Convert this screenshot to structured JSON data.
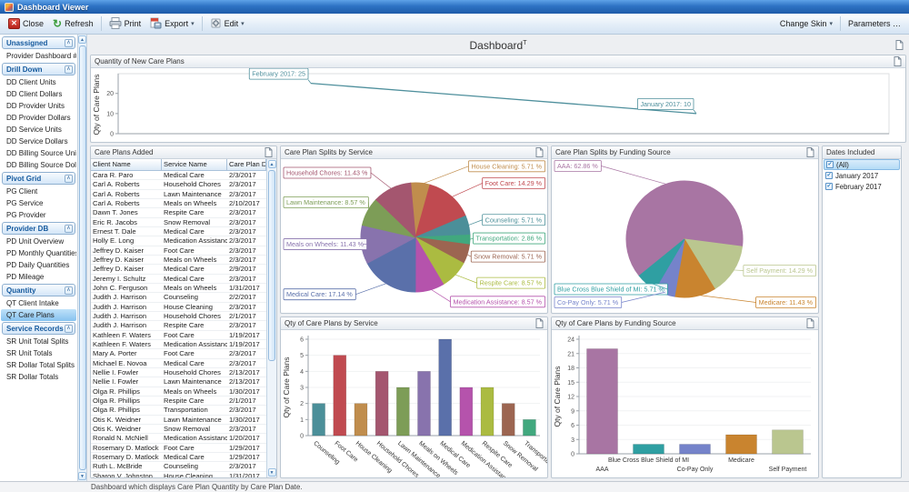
{
  "window": {
    "title": "Dashboard Viewer"
  },
  "toolbar": {
    "close": "Close",
    "refresh": "Refresh",
    "print": "Print",
    "export": "Export",
    "edit": "Edit",
    "change_skin": "Change Skin",
    "parameters": "Parameters …"
  },
  "sidebar": {
    "selected": "QT Care Plans",
    "groups": [
      {
        "label": "Unassigned",
        "items": [
          "Provider Dashboard #2"
        ]
      },
      {
        "label": "Drill Down",
        "items": [
          "DD Client Units",
          "DD Client Dollars",
          "DD Provider Units",
          "DD Provider Dollars",
          "DD Service Units",
          "DD Service Dollars",
          "DD Billing Source Units",
          "DD Billing Source Dollars"
        ]
      },
      {
        "label": "Pivot Grid",
        "items": [
          "PG Client",
          "PG Service",
          "PG Provider"
        ]
      },
      {
        "label": "Provider DB",
        "items": [
          "PD Unit Overview",
          "PD Monthly Quantities",
          "PD Daily Quantities",
          "PD Mileage"
        ]
      },
      {
        "label": "Quantity",
        "items": [
          "QT Client Intake",
          "QT Care Plans"
        ]
      },
      {
        "label": "Service Records",
        "items": [
          "SR Unit Total Splits",
          "SR Unit Totals",
          "SR Dollar Total Splits",
          "SR Dollar Totals"
        ]
      }
    ]
  },
  "dashboard": {
    "title": "Dashboard",
    "title_superscript": "T"
  },
  "table": {
    "title": "Care Plans Added",
    "columns": [
      "Client Name",
      "Service Name",
      "Care Plan Date"
    ],
    "rows": [
      [
        "Cara R. Paro",
        "Medical Care",
        "2/3/2017"
      ],
      [
        "Carl A. Roberts",
        "Household Chores",
        "2/3/2017"
      ],
      [
        "Carl A. Roberts",
        "Lawn Maintenance",
        "2/3/2017"
      ],
      [
        "Carl A. Roberts",
        "Meals on Wheels",
        "2/10/2017"
      ],
      [
        "Dawn T. Jones",
        "Respite Care",
        "2/3/2017"
      ],
      [
        "Eric R. Jacobs",
        "Snow Removal",
        "2/3/2017"
      ],
      [
        "Ernest T. Dale",
        "Medical Care",
        "2/3/2017"
      ],
      [
        "Holly E. Long",
        "Medication Assistance",
        "2/3/2017"
      ],
      [
        "Jeffrey D. Kaiser",
        "Foot Care",
        "2/3/2017"
      ],
      [
        "Jeffrey D. Kaiser",
        "Meals on Wheels",
        "2/3/2017"
      ],
      [
        "Jeffrey D. Kaiser",
        "Medical Care",
        "2/9/2017"
      ],
      [
        "Jeremy I. Schultz",
        "Medical Care",
        "2/3/2017"
      ],
      [
        "John C. Ferguson",
        "Meals on Wheels",
        "1/31/2017"
      ],
      [
        "Judith J. Harrison",
        "Counseling",
        "2/2/2017"
      ],
      [
        "Judith J. Harrison",
        "House Cleaning",
        "2/3/2017"
      ],
      [
        "Judith J. Harrison",
        "Household Chores",
        "2/1/2017"
      ],
      [
        "Judith J. Harrison",
        "Respite Care",
        "2/3/2017"
      ],
      [
        "Kathleen F. Waters",
        "Foot Care",
        "1/19/2017"
      ],
      [
        "Kathleen F. Waters",
        "Medication Assistance",
        "1/19/2017"
      ],
      [
        "Mary A. Porter",
        "Foot Care",
        "2/3/2017"
      ],
      [
        "Michael E. Novoa",
        "Medical Care",
        "2/3/2017"
      ],
      [
        "Nellie I. Fowler",
        "Household Chores",
        "2/13/2017"
      ],
      [
        "Nellie I. Fowler",
        "Lawn Maintenance",
        "2/13/2017"
      ],
      [
        "Olga R. Phillips",
        "Meals on Wheels",
        "1/30/2017"
      ],
      [
        "Olga R. Phillips",
        "Respite Care",
        "2/1/2017"
      ],
      [
        "Olga R. Phillips",
        "Transportation",
        "2/3/2017"
      ],
      [
        "Otis K. Weidner",
        "Lawn Maintenance",
        "1/30/2017"
      ],
      [
        "Otis K. Weidner",
        "Snow Removal",
        "2/3/2017"
      ],
      [
        "Ronald N. McNiell",
        "Medication Assistance",
        "1/20/2017"
      ],
      [
        "Rosemary D. Matlock",
        "Foot Care",
        "1/29/2017"
      ],
      [
        "Rosemary D. Matlock",
        "Medical Care",
        "1/29/2017"
      ],
      [
        "Ruth L. McBride",
        "Counseling",
        "2/3/2017"
      ],
      [
        "Sharon V. Johnston",
        "House Cleaning",
        "1/31/2017"
      ]
    ]
  },
  "dates_panel": {
    "title": "Dates Included",
    "options": [
      {
        "label": "(All)",
        "checked": true,
        "selected": true
      },
      {
        "label": "January 2017",
        "checked": true,
        "selected": false
      },
      {
        "label": "February 2017",
        "checked": true,
        "selected": false
      }
    ]
  },
  "status_bar": {
    "text": "Dashboard which displays Care Plan Quantity by Care Plan Date."
  },
  "chart_data": [
    {
      "id": "new_care_plans",
      "type": "line",
      "title": "Quantity of New Care Plans",
      "ylabel": "Qty of Care Plans",
      "ylim": [
        0,
        28
      ],
      "yticks": [
        0,
        10,
        20
      ],
      "color": "#4e8f9c",
      "points": [
        {
          "label": "February 2017",
          "value": 25,
          "x_frac": 0.25
        },
        {
          "label": "January 2017",
          "value": 10,
          "x_frac": 0.75
        }
      ]
    },
    {
      "id": "splits_by_service",
      "type": "pie",
      "title": "Care Plan Splits by Service",
      "start_angle": -5,
      "slices": [
        {
          "name": "House Cleaning",
          "pct": 5.71,
          "color": "#c08d4d"
        },
        {
          "name": "Foot Care",
          "pct": 14.29,
          "color": "#c04a50"
        },
        {
          "name": "Counseling",
          "pct": 5.71,
          "color": "#4b8f99"
        },
        {
          "name": "Transportation",
          "pct": 2.86,
          "color": "#41a87e"
        },
        {
          "name": "Snow Removal",
          "pct": 5.71,
          "color": "#9c6551"
        },
        {
          "name": "Respite Care",
          "pct": 8.57,
          "color": "#abbb41"
        },
        {
          "name": "Medication Assistance",
          "pct": 8.57,
          "color": "#b553ac"
        },
        {
          "name": "Medical Care",
          "pct": 17.14,
          "color": "#5a70aa"
        },
        {
          "name": "Meals on Wheels",
          "pct": 11.43,
          "color": "#8873ad"
        },
        {
          "name": "Lawn Maintenance",
          "pct": 8.57,
          "color": "#7d9d57"
        },
        {
          "name": "Household Chores",
          "pct": 11.43,
          "color": "#a4566f"
        }
      ]
    },
    {
      "id": "splits_by_funding",
      "type": "pie",
      "title": "Care Plan Splits by Funding Source",
      "start_angle": -129,
      "slices": [
        {
          "name": "AAA",
          "pct": 62.86,
          "color": "#a875a3"
        },
        {
          "name": "Self Payment",
          "pct": 14.29,
          "color": "#bac68f"
        },
        {
          "name": "Medicare",
          "pct": 11.43,
          "color": "#c9842f"
        },
        {
          "name": "Co-Pay Only",
          "pct": 5.71,
          "color": "#7583ca"
        },
        {
          "name": "Blue Cross Blue Shield of MI",
          "pct": 5.71,
          "color": "#2f9fa2"
        }
      ]
    },
    {
      "id": "qty_by_service",
      "type": "bar",
      "title": "Qty of Care Plans by Service",
      "ylabel": "Qty of Care Plans",
      "ylim": [
        0,
        6
      ],
      "ytick_step": 1,
      "categories": [
        "Counseling",
        "Foot Care",
        "House Cleaning",
        "Household Chores",
        "Lawn Maintenance",
        "Meals on Wheels",
        "Medical Care",
        "Medication Assistance",
        "Respite Care",
        "Snow Removal",
        "Transportation"
      ],
      "values": [
        2,
        5,
        2,
        4,
        3,
        4,
        6,
        3,
        3,
        2,
        1
      ],
      "colors": [
        "#4b8f99",
        "#c04a50",
        "#c08d4d",
        "#a4566f",
        "#7d9d57",
        "#8873ad",
        "#5a70aa",
        "#b553ac",
        "#abbb41",
        "#9c6551",
        "#41a87e"
      ],
      "label_rotate": true
    },
    {
      "id": "qty_by_funding",
      "type": "bar",
      "title": "Qty of Care Plans by Funding Source",
      "ylabel": "Qty of Care Plans",
      "ylim": [
        0,
        24
      ],
      "ytick_step": 3,
      "categories": [
        "AAA",
        "Blue Cross Blue Shield of MI",
        "Co-Pay Only",
        "Medicare",
        "Self Payment"
      ],
      "values": [
        22,
        2,
        2,
        4,
        5
      ],
      "colors": [
        "#a875a3",
        "#2f9fa2",
        "#7583ca",
        "#c9842f",
        "#bac68f"
      ],
      "label_stagger": true
    }
  ]
}
